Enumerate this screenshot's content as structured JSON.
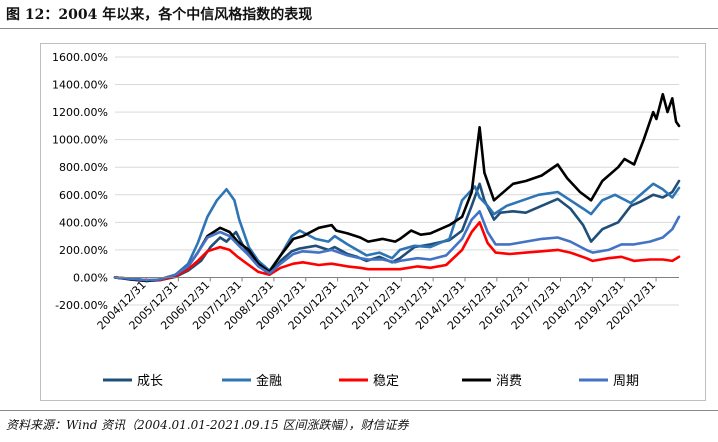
{
  "figure": {
    "title": "图 12：2004 年以来，各个中信风格指数的表现",
    "source": "资料来源：Wind 资讯（2004.01.01-2021.09.15 区间涨跌幅），财信证券"
  },
  "chart_data": {
    "type": "line",
    "y_unit": "%",
    "ylim": [
      -200,
      1600
    ],
    "yticks": [
      -200,
      0,
      200,
      400,
      600,
      800,
      1000,
      1200,
      1400,
      1600
    ],
    "ytick_labels": [
      "-200.00%",
      "0.00%",
      "200.00%",
      "400.00%",
      "600.00%",
      "800.00%",
      "1000.00%",
      "1200.00%",
      "1400.00%",
      "1600.00%"
    ],
    "xlim": [
      2004.0,
      2021.71
    ],
    "xticks": [
      2004.99,
      2005.99,
      2006.99,
      2007.99,
      2008.99,
      2009.99,
      2010.99,
      2011.99,
      2012.99,
      2013.99,
      2014.99,
      2015.99,
      2016.99,
      2017.99,
      2018.99,
      2019.99,
      2020.99
    ],
    "xtick_labels": [
      "2004/12/31",
      "2005/12/31",
      "2006/12/31",
      "2007/12/31",
      "2008/12/31",
      "2009/12/31",
      "2010/12/31",
      "2011/12/31",
      "2012/12/31",
      "2013/12/31",
      "2014/12/31",
      "2015/12/31",
      "2016/12/31",
      "2017/12/31",
      "2018/12/31",
      "2019/12/31",
      "2020/12/31"
    ],
    "grid": true,
    "legend_position": "bottom",
    "series": [
      {
        "name": "成长",
        "color": "#1f4e79",
        "x": [
          2004.0,
          2004.5,
          2005.0,
          2005.4,
          2005.9,
          2006.3,
          2006.7,
          2007.0,
          2007.3,
          2007.5,
          2007.8,
          2008.0,
          2008.3,
          2008.6,
          2008.85,
          2009.2,
          2009.55,
          2009.8,
          2010.3,
          2010.7,
          2010.9,
          2011.3,
          2011.6,
          2011.9,
          2012.3,
          2012.7,
          2012.95,
          2013.4,
          2013.9,
          2014.5,
          2014.9,
          2015.2,
          2015.45,
          2015.6,
          2015.9,
          2016.1,
          2016.5,
          2016.9,
          2017.4,
          2017.9,
          2018.3,
          2018.7,
          2018.95,
          2019.3,
          2019.8,
          2020.2,
          2020.5,
          2020.9,
          2021.2,
          2021.5,
          2021.71
        ],
        "values": [
          0,
          -10,
          -20,
          -20,
          5,
          50,
          120,
          220,
          290,
          260,
          330,
          240,
          150,
          70,
          20,
          120,
          190,
          210,
          230,
          200,
          220,
          170,
          150,
          120,
          150,
          110,
          140,
          220,
          240,
          270,
          340,
          520,
          680,
          560,
          420,
          470,
          480,
          470,
          520,
          570,
          500,
          380,
          260,
          350,
          400,
          520,
          550,
          600,
          580,
          620,
          700
        ]
      },
      {
        "name": "金融",
        "color": "#2e75b6",
        "x": [
          2004.0,
          2004.5,
          2005.0,
          2005.4,
          2005.9,
          2006.3,
          2006.6,
          2006.9,
          2007.2,
          2007.5,
          2007.75,
          2007.9,
          2008.2,
          2008.5,
          2008.85,
          2009.2,
          2009.55,
          2009.8,
          2010.3,
          2010.7,
          2010.9,
          2011.3,
          2011.6,
          2011.9,
          2012.3,
          2012.7,
          2012.95,
          2013.4,
          2013.9,
          2014.5,
          2014.9,
          2015.3,
          2015.45,
          2015.7,
          2015.9,
          2016.3,
          2016.8,
          2017.3,
          2017.9,
          2018.3,
          2018.7,
          2018.95,
          2019.3,
          2019.7,
          2020.2,
          2020.5,
          2020.9,
          2021.2,
          2021.5,
          2021.71
        ],
        "values": [
          0,
          -15,
          -25,
          -20,
          20,
          100,
          250,
          440,
          560,
          640,
          560,
          420,
          220,
          120,
          50,
          160,
          300,
          340,
          280,
          260,
          300,
          240,
          200,
          160,
          180,
          140,
          200,
          230,
          220,
          280,
          560,
          660,
          580,
          520,
          460,
          520,
          560,
          600,
          620,
          560,
          500,
          460,
          560,
          600,
          540,
          600,
          680,
          640,
          580,
          650
        ]
      },
      {
        "name": "稳定",
        "color": "#ff0000",
        "x": [
          2004.0,
          2004.5,
          2005.0,
          2005.4,
          2005.9,
          2006.3,
          2006.6,
          2006.9,
          2007.3,
          2007.6,
          2007.85,
          2008.2,
          2008.5,
          2008.85,
          2009.2,
          2009.6,
          2009.9,
          2010.4,
          2010.8,
          2011.3,
          2011.7,
          2011.95,
          2012.4,
          2012.8,
          2012.95,
          2013.5,
          2013.9,
          2014.4,
          2014.9,
          2015.2,
          2015.45,
          2015.7,
          2015.95,
          2016.4,
          2016.9,
          2017.4,
          2017.9,
          2018.3,
          2018.8,
          2019.0,
          2019.5,
          2019.9,
          2020.3,
          2020.8,
          2021.2,
          2021.5,
          2021.71
        ],
        "values": [
          0,
          -10,
          -20,
          -20,
          10,
          60,
          120,
          190,
          220,
          200,
          150,
          90,
          40,
          20,
          70,
          100,
          110,
          90,
          100,
          80,
          70,
          60,
          60,
          60,
          60,
          80,
          70,
          90,
          200,
          330,
          400,
          250,
          180,
          170,
          180,
          190,
          200,
          180,
          140,
          120,
          140,
          150,
          120,
          130,
          130,
          120,
          150
        ]
      },
      {
        "name": "消费",
        "color": "#000000",
        "x": [
          2004.0,
          2004.5,
          2005.0,
          2005.4,
          2005.9,
          2006.3,
          2006.6,
          2006.9,
          2007.3,
          2007.6,
          2007.85,
          2008.2,
          2008.5,
          2008.85,
          2009.2,
          2009.6,
          2009.9,
          2010.4,
          2010.8,
          2010.95,
          2011.3,
          2011.7,
          2011.95,
          2012.4,
          2012.8,
          2012.95,
          2013.3,
          2013.6,
          2013.9,
          2014.5,
          2014.9,
          2015.2,
          2015.45,
          2015.6,
          2015.9,
          2016.1,
          2016.5,
          2016.9,
          2017.4,
          2017.9,
          2018.2,
          2018.6,
          2018.95,
          2019.3,
          2019.8,
          2020.0,
          2020.3,
          2020.6,
          2020.9,
          2021.0,
          2021.2,
          2021.35,
          2021.5,
          2021.62,
          2021.71
        ],
        "values": [
          0,
          -15,
          -25,
          -15,
          20,
          80,
          180,
          300,
          360,
          330,
          260,
          200,
          100,
          40,
          160,
          280,
          300,
          360,
          380,
          340,
          320,
          290,
          260,
          280,
          260,
          280,
          340,
          310,
          320,
          380,
          440,
          620,
          1090,
          760,
          560,
          600,
          680,
          700,
          740,
          820,
          720,
          620,
          560,
          700,
          800,
          860,
          820,
          1000,
          1200,
          1150,
          1330,
          1200,
          1300,
          1130,
          1100
        ]
      },
      {
        "name": "周期",
        "color": "#4472c4",
        "x": [
          2004.0,
          2004.5,
          2005.0,
          2005.4,
          2005.9,
          2006.3,
          2006.6,
          2006.9,
          2007.3,
          2007.6,
          2007.85,
          2008.2,
          2008.5,
          2008.85,
          2009.2,
          2009.6,
          2009.9,
          2010.4,
          2010.8,
          2011.3,
          2011.7,
          2011.95,
          2012.4,
          2012.8,
          2012.95,
          2013.5,
          2013.9,
          2014.4,
          2014.9,
          2015.2,
          2015.45,
          2015.7,
          2015.95,
          2016.4,
          2016.9,
          2017.4,
          2017.9,
          2018.3,
          2018.8,
          2019.0,
          2019.5,
          2019.9,
          2020.3,
          2020.8,
          2021.2,
          2021.5,
          2021.71
        ],
        "values": [
          0,
          -10,
          -20,
          -15,
          20,
          80,
          180,
          290,
          330,
          300,
          240,
          160,
          80,
          30,
          100,
          170,
          190,
          180,
          200,
          160,
          140,
          130,
          130,
          110,
          120,
          140,
          130,
          160,
          280,
          420,
          480,
          330,
          240,
          240,
          260,
          280,
          290,
          260,
          200,
          180,
          200,
          240,
          240,
          260,
          290,
          350,
          440
        ]
      }
    ]
  }
}
